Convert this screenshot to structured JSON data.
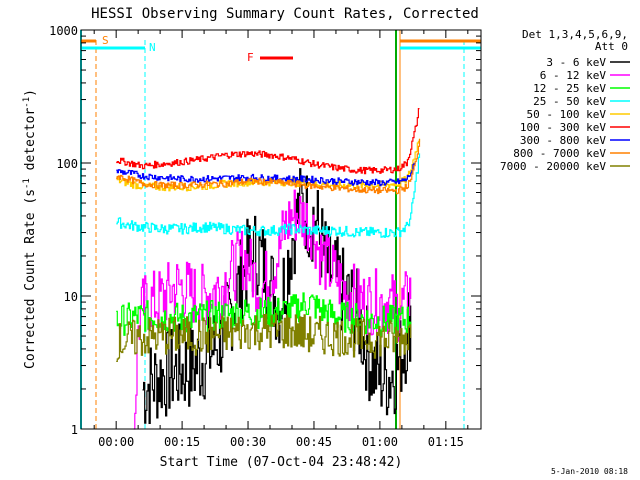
{
  "chart_data": {
    "type": "line",
    "title": "HESSI Observing Summary Count Rates, Corrected",
    "xlabel": "Start Time (07-Oct-04 23:48:42)",
    "ylabel_main": "Corrected Count Rate (s",
    "ylabel_sup1": "-1",
    "ylabel_mid": " detector",
    "ylabel_sup2": "-1",
    "ylabel_end": ")",
    "ylog": true,
    "xlim_min": [
      -8,
      83
    ],
    "ylim": [
      1,
      1000
    ],
    "xticks": [
      {
        "v": 0,
        "label": "00:00"
      },
      {
        "v": 15,
        "label": "00:15"
      },
      {
        "v": 30,
        "label": "00:30"
      },
      {
        "v": 45,
        "label": "00:45"
      },
      {
        "v": 60,
        "label": "01:00"
      },
      {
        "v": 75,
        "label": "01:15"
      }
    ],
    "yticks": [
      {
        "v": 1,
        "label": "1"
      },
      {
        "v": 10,
        "label": "10"
      },
      {
        "v": 100,
        "label": "100"
      },
      {
        "v": 1000,
        "label": "1000"
      }
    ],
    "legend_header": [
      "Det 1,3,4,5,6,9,",
      "Att 0"
    ],
    "legend_position": "right",
    "footer_timestamp": "5-Jan-2010 08:18",
    "flags": [
      {
        "letter": "S",
        "color": "#ff8000"
      },
      {
        "letter": "N",
        "color": "#00ffff"
      },
      {
        "letter": "F",
        "color": "#ff0000"
      }
    ],
    "series": [
      {
        "name": "3 - 6 keV",
        "color": "#000000",
        "points": [
          [
            6,
            2
          ],
          [
            10,
            2.5
          ],
          [
            14,
            2.8
          ],
          [
            18,
            3
          ],
          [
            20,
            3.5
          ],
          [
            22,
            4
          ],
          [
            24,
            5
          ],
          [
            26,
            8
          ],
          [
            28,
            12
          ],
          [
            30,
            18
          ],
          [
            32,
            22
          ],
          [
            34,
            15
          ],
          [
            36,
            10
          ],
          [
            37,
            9
          ],
          [
            38,
            12
          ],
          [
            39,
            18
          ],
          [
            40,
            28
          ],
          [
            41,
            38
          ],
          [
            42,
            48
          ],
          [
            43,
            45
          ],
          [
            44,
            38
          ],
          [
            45,
            40
          ],
          [
            46,
            30
          ],
          [
            47,
            22
          ],
          [
            48,
            16
          ],
          [
            50,
            13
          ],
          [
            52,
            10
          ],
          [
            54,
            8
          ],
          [
            55,
            7
          ],
          [
            56,
            5
          ],
          [
            57,
            4
          ],
          [
            58,
            3
          ],
          [
            60,
            2.5
          ],
          [
            62,
            2.5
          ],
          [
            64,
            3
          ],
          [
            66,
            5
          ],
          [
            66.5,
            6
          ],
          [
            67,
            8
          ]
        ]
      },
      {
        "name": "6 - 12 keV",
        "color": "#ff00ff",
        "points": [
          [
            4,
            1
          ],
          [
            5,
            6
          ],
          [
            6,
            8
          ],
          [
            7,
            9
          ],
          [
            9,
            9
          ],
          [
            11,
            10
          ],
          [
            14,
            12
          ],
          [
            16,
            11
          ],
          [
            18,
            10
          ],
          [
            20,
            10
          ],
          [
            22,
            11
          ],
          [
            24,
            12
          ],
          [
            26,
            15
          ],
          [
            28,
            18
          ],
          [
            29,
            20
          ],
          [
            30,
            17
          ],
          [
            32,
            13
          ],
          [
            33,
            11
          ],
          [
            34,
            13
          ],
          [
            36,
            17
          ],
          [
            37,
            22
          ],
          [
            38,
            30
          ],
          [
            39,
            36
          ],
          [
            40,
            40
          ],
          [
            41,
            42
          ],
          [
            42,
            40
          ],
          [
            44,
            35
          ],
          [
            45,
            30
          ],
          [
            46,
            22
          ],
          [
            48,
            17
          ],
          [
            50,
            14
          ],
          [
            52,
            11
          ],
          [
            54,
            10
          ],
          [
            56,
            9
          ],
          [
            58,
            9
          ],
          [
            60,
            9
          ],
          [
            62,
            9
          ],
          [
            64,
            8
          ],
          [
            66,
            9
          ],
          [
            67,
            12
          ]
        ]
      },
      {
        "name": "12 - 25 keV",
        "color": "#00ff00",
        "points": [
          [
            0,
            6.5
          ],
          [
            5,
            7
          ],
          [
            10,
            7
          ],
          [
            15,
            6.8
          ],
          [
            20,
            7
          ],
          [
            25,
            7.2
          ],
          [
            30,
            7.5
          ],
          [
            35,
            7.5
          ],
          [
            40,
            7.8
          ],
          [
            42,
            8.5
          ],
          [
            44,
            9
          ],
          [
            46,
            8
          ],
          [
            48,
            7.5
          ],
          [
            50,
            7
          ],
          [
            55,
            6.8
          ],
          [
            60,
            6.5
          ],
          [
            64,
            6.5
          ],
          [
            66,
            6.6
          ],
          [
            67,
            7
          ]
        ]
      },
      {
        "name": "25 - 50 keV",
        "color": "#00ffff",
        "points": [
          [
            0,
            36
          ],
          [
            3,
            34
          ],
          [
            6,
            33
          ],
          [
            10,
            32
          ],
          [
            15,
            32
          ],
          [
            20,
            33
          ],
          [
            25,
            32
          ],
          [
            30,
            31
          ],
          [
            35,
            31
          ],
          [
            40,
            32
          ],
          [
            45,
            31
          ],
          [
            50,
            31
          ],
          [
            55,
            30
          ],
          [
            60,
            30
          ],
          [
            64,
            30
          ],
          [
            66,
            33
          ],
          [
            67,
            40
          ],
          [
            68,
            70
          ],
          [
            69,
            120
          ]
        ]
      },
      {
        "name": "50 - 100 keV",
        "color": "#ffcc00",
        "points": [
          [
            0,
            75
          ],
          [
            3,
            70
          ],
          [
            6,
            67
          ],
          [
            10,
            66
          ],
          [
            15,
            66
          ],
          [
            20,
            67
          ],
          [
            25,
            70
          ],
          [
            30,
            72
          ],
          [
            35,
            72
          ],
          [
            40,
            72
          ],
          [
            45,
            70
          ],
          [
            50,
            68
          ],
          [
            55,
            68
          ],
          [
            60,
            68
          ],
          [
            64,
            70
          ],
          [
            66,
            75
          ],
          [
            67,
            90
          ],
          [
            68,
            120
          ],
          [
            69,
            160
          ]
        ]
      },
      {
        "name": "100 - 300 keV",
        "color": "#ff0000",
        "points": [
          [
            0,
            105
          ],
          [
            3,
            100
          ],
          [
            6,
            95
          ],
          [
            10,
            98
          ],
          [
            15,
            102
          ],
          [
            20,
            108
          ],
          [
            25,
            115
          ],
          [
            30,
            118
          ],
          [
            35,
            115
          ],
          [
            40,
            108
          ],
          [
            45,
            98
          ],
          [
            50,
            92
          ],
          [
            55,
            88
          ],
          [
            60,
            88
          ],
          [
            64,
            90
          ],
          [
            66,
            100
          ],
          [
            67,
            130
          ],
          [
            68,
            180
          ],
          [
            69,
            270
          ]
        ]
      },
      {
        "name": "300 - 800 keV",
        "color": "#0000ff",
        "points": [
          [
            0,
            87
          ],
          [
            3,
            84
          ],
          [
            6,
            80
          ],
          [
            10,
            78
          ],
          [
            15,
            76
          ],
          [
            20,
            76
          ],
          [
            25,
            77
          ],
          [
            30,
            78
          ],
          [
            35,
            77
          ],
          [
            40,
            76
          ],
          [
            45,
            75
          ],
          [
            50,
            73
          ],
          [
            55,
            72
          ],
          [
            60,
            71
          ],
          [
            64,
            72
          ],
          [
            66,
            75
          ],
          [
            67,
            85
          ],
          [
            68,
            100
          ]
        ]
      },
      {
        "name": "800 - 7000 keV",
        "color": "#ff8000",
        "points": [
          [
            0,
            80
          ],
          [
            3,
            75
          ],
          [
            6,
            70
          ],
          [
            10,
            68
          ],
          [
            15,
            68
          ],
          [
            20,
            69
          ],
          [
            25,
            70
          ],
          [
            30,
            73
          ],
          [
            35,
            72
          ],
          [
            40,
            70
          ],
          [
            45,
            67
          ],
          [
            50,
            65
          ],
          [
            55,
            63
          ],
          [
            60,
            62
          ],
          [
            64,
            62
          ],
          [
            66,
            66
          ],
          [
            67,
            75
          ],
          [
            68,
            100
          ],
          [
            69,
            150
          ]
        ]
      },
      {
        "name": "7000 - 20000 keV",
        "color": "#808000",
        "points": [
          [
            0,
            4.5
          ],
          [
            5,
            4.8
          ],
          [
            10,
            5
          ],
          [
            15,
            5
          ],
          [
            20,
            5
          ],
          [
            25,
            5.2
          ],
          [
            30,
            5.5
          ],
          [
            35,
            5.5
          ],
          [
            40,
            5.5
          ],
          [
            45,
            5
          ],
          [
            50,
            5
          ],
          [
            55,
            4.8
          ],
          [
            60,
            4.8
          ],
          [
            64,
            4.7
          ],
          [
            66,
            5
          ],
          [
            67,
            5.5
          ]
        ]
      }
    ]
  }
}
